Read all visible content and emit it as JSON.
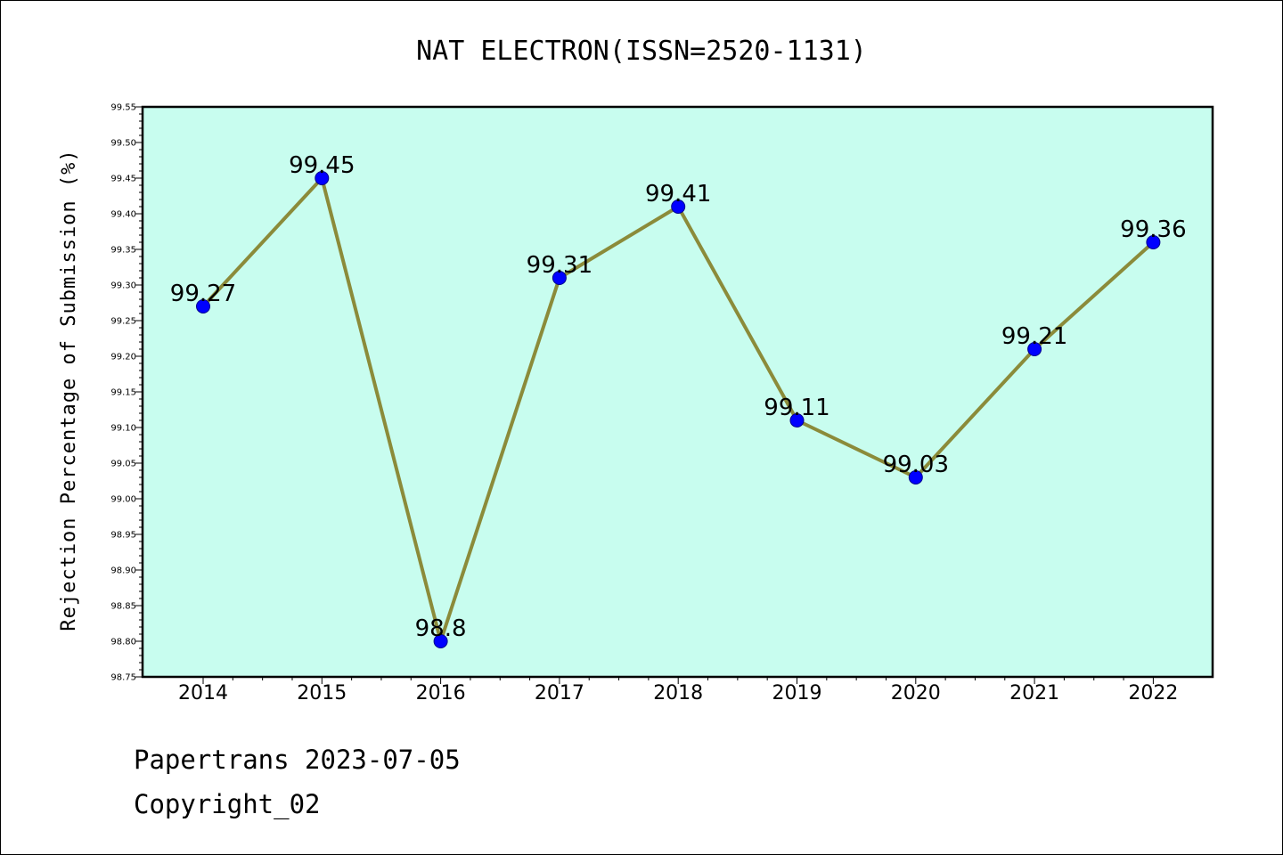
{
  "footer": {
    "line1": "Papertrans 2023-07-05",
    "line2": "Copyright_02"
  },
  "chart_data": {
    "type": "line",
    "title": "NAT ELECTRON(ISSN=2520-1131)",
    "ylabel": "Rejection Percentage of Submission (%)",
    "xlabel": "",
    "categories": [
      "2014",
      "2015",
      "2016",
      "2017",
      "2018",
      "2019",
      "2020",
      "2021",
      "2022"
    ],
    "values": [
      99.27,
      99.45,
      98.8,
      99.31,
      99.41,
      99.11,
      99.03,
      99.21,
      99.36
    ],
    "data_labels": [
      "99.27",
      "99.45",
      "98.8",
      "99.31",
      "99.41",
      "99.11",
      "99.03",
      "99.21",
      "99.36"
    ],
    "ylim": [
      98.75,
      99.55
    ],
    "yticks": [
      "98.75",
      "98.80",
      "98.85",
      "98.90",
      "98.95",
      "99.00",
      "99.05",
      "99.10",
      "99.15",
      "99.20",
      "99.25",
      "99.30",
      "99.35",
      "99.40",
      "99.45",
      "99.50",
      "99.55"
    ],
    "grid": false,
    "legend": "none",
    "colors": {
      "plot_background": "#c8fdef",
      "line": "#8b8b3a",
      "marker": "#0000ff"
    }
  }
}
